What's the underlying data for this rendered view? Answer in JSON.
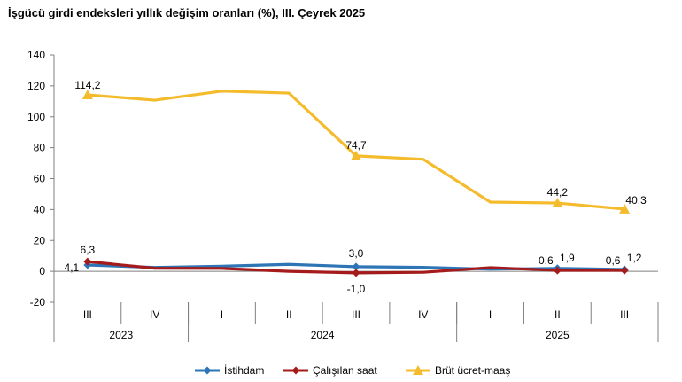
{
  "chart_data": {
    "type": "line",
    "title": "İşgücü girdi endeksleri yıllık değişim oranları (%), III. Çeyrek 2025",
    "categories": [
      "III",
      "IV",
      "I",
      "II",
      "III",
      "IV",
      "I",
      "II",
      "III"
    ],
    "year_groups": [
      {
        "label": "2023",
        "span": 2
      },
      {
        "label": "2024",
        "span": 4
      },
      {
        "label": "2025",
        "span": 3
      }
    ],
    "ylim": [
      -20,
      140
    ],
    "yticks": [
      140,
      120,
      100,
      80,
      60,
      40,
      20,
      0,
      -20
    ],
    "grid": false,
    "legend": "bottom",
    "series": [
      {
        "name": "İstihdam",
        "color": "#2E75B6",
        "marker": "diamond",
        "values": [
          4.1,
          2.5,
          3.3,
          4.5,
          3.0,
          2.6,
          1.4,
          1.9,
          1.2
        ]
      },
      {
        "name": "Çalışılan saat",
        "color": "#A51B1B",
        "marker": "diamond",
        "values": [
          6.3,
          2.0,
          1.9,
          0.0,
          -1.0,
          -0.6,
          2.4,
          0.6,
          0.6
        ]
      },
      {
        "name": "Brüt ücret-maaş",
        "color": "#F4BB2C",
        "marker": "triangle",
        "values": [
          114.2,
          110.7,
          116.6,
          115.3,
          74.7,
          72.5,
          44.8,
          44.2,
          40.3
        ]
      }
    ],
    "data_labels": [
      {
        "series": 2,
        "index": 0,
        "text": "114,2"
      },
      {
        "series": 2,
        "index": 4,
        "text": "74,7"
      },
      {
        "series": 2,
        "index": 7,
        "text": "44,2"
      },
      {
        "series": 2,
        "index": 8,
        "text": "40,3"
      },
      {
        "series": 1,
        "index": 0,
        "text": "6,3"
      },
      {
        "series": 0,
        "index": 0,
        "text": "4,1"
      },
      {
        "series": 0,
        "index": 4,
        "text": "3,0"
      },
      {
        "series": 1,
        "index": 4,
        "text": "-1,0"
      },
      {
        "series": 1,
        "index": 7,
        "text": "0,6"
      },
      {
        "series": 0,
        "index": 7,
        "text": "1,9"
      },
      {
        "series": 1,
        "index": 8,
        "text": "0,6"
      },
      {
        "series": 0,
        "index": 8,
        "text": "1,2"
      }
    ]
  }
}
